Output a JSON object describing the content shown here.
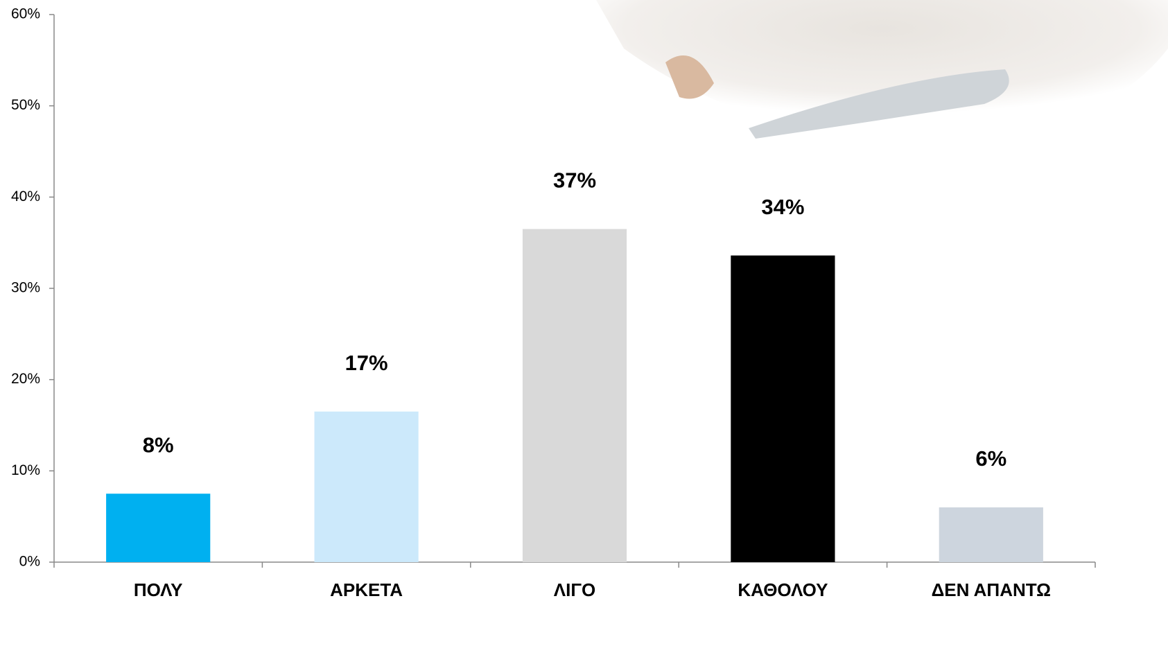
{
  "chart_data": {
    "type": "bar",
    "categories": [
      "ΠΟΛΥ",
      "ΑΡΚΕΤΑ",
      "ΛΙΓΟ",
      "ΚΑΘΟΛΟΥ",
      "ΔΕΝ ΑΠΑΝΤΩ"
    ],
    "values": [
      7.5,
      16.5,
      36.5,
      33.6,
      6.0
    ],
    "value_labels": [
      "8%",
      "17%",
      "37%",
      "34%",
      "6%"
    ],
    "colors": [
      "#00b0f0",
      "#cce9fb",
      "#d9d9d9",
      "#000000",
      "#cdd5de"
    ],
    "ylim": [
      0,
      60
    ],
    "yticks": [
      {
        "value": 0,
        "label": "0%"
      },
      {
        "value": 10,
        "label": "10%"
      },
      {
        "value": 20,
        "label": "20%"
      },
      {
        "value": 30,
        "label": "30%"
      },
      {
        "value": 40,
        "label": "40%"
      },
      {
        "value": 50,
        "label": "50%"
      },
      {
        "value": 60,
        "label": "60%"
      }
    ],
    "grid": false
  }
}
